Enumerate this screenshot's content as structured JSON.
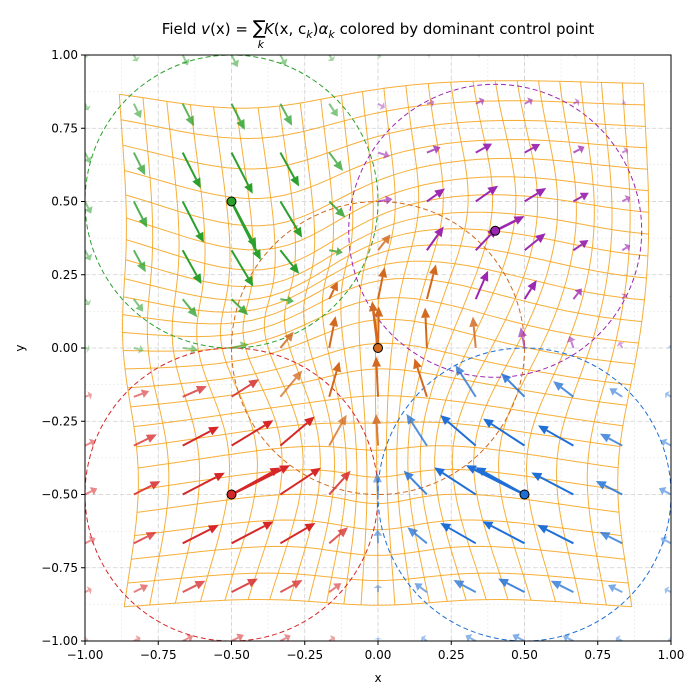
{
  "chart_data": {
    "type": "quiver",
    "title_parts": {
      "pre": "Field ",
      "v": "v",
      "arg": "(x) = ",
      "sum": "∑",
      "sub": "k",
      "k": "K",
      "kargs": "(x, c",
      "ksub": "k",
      "close": ")",
      "alpha": "α",
      "asub": "k",
      "post": " colored by dominant control point"
    },
    "xlabel": "x",
    "ylabel": "y",
    "xlim": [
      -1.0,
      1.0
    ],
    "ylim": [
      -1.0,
      1.0
    ],
    "xticks": [
      "−1.00",
      "−0.75",
      "−0.50",
      "−0.25",
      "0.00",
      "0.25",
      "0.50",
      "0.75",
      "1.00"
    ],
    "yticks": [
      "1.00",
      "0.75",
      "0.50",
      "0.25",
      "0.00",
      "−0.25",
      "−0.50",
      "−0.75",
      "−1.00"
    ],
    "xtick_values": [
      -1.0,
      -0.75,
      -0.5,
      -0.25,
      0.0,
      0.25,
      0.5,
      0.75,
      1.0
    ],
    "ytick_values": [
      1.0,
      0.75,
      0.5,
      0.25,
      0.0,
      -0.25,
      -0.5,
      -0.75,
      -1.0
    ],
    "grid": true,
    "kernel_radius": 0.5,
    "kernel_sigma": 0.3,
    "control_points": [
      {
        "c": [
          -0.5,
          0.5
        ],
        "alpha": [
          0.1,
          -0.2
        ],
        "color": "#2ca02c"
      },
      {
        "c": [
          0.4,
          0.4
        ],
        "alpha": [
          0.1,
          0.05
        ],
        "color": "#9c27b0"
      },
      {
        "c": [
          0.0,
          0.0
        ],
        "alpha": [
          -0.02,
          0.16
        ],
        "color": "#d2691e"
      },
      {
        "c": [
          -0.5,
          -0.5
        ],
        "alpha": [
          0.2,
          0.1
        ],
        "color": "#d62728"
      },
      {
        "c": [
          0.5,
          -0.5
        ],
        "alpha": [
          -0.2,
          0.1
        ],
        "color": "#1f6fd6"
      }
    ],
    "deformed_grid_color": "#f5a623",
    "quiver_grid_step": 0.1667
  }
}
